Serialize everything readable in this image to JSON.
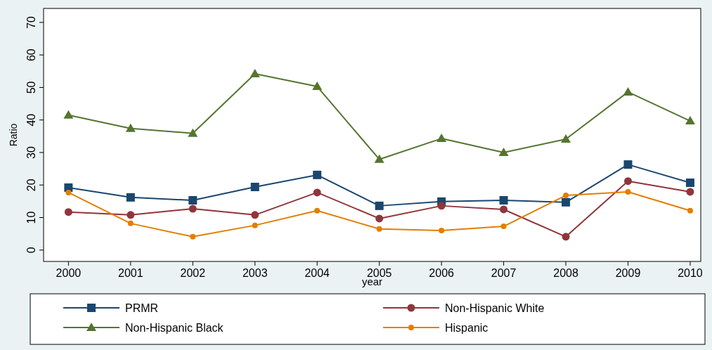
{
  "chart_data": {
    "type": "line",
    "xlabel": "year",
    "ylabel": "Ratio",
    "x": [
      2000,
      2001,
      2002,
      2003,
      2004,
      2005,
      2006,
      2007,
      2008,
      2009,
      2010
    ],
    "xlim": [
      1999.6,
      2010.17
    ],
    "xticks": [
      2000,
      2001,
      2002,
      2003,
      2004,
      2005,
      2006,
      2007,
      2008,
      2009,
      2010
    ],
    "ylim": [
      -3.5,
      74.3
    ],
    "yticks": [
      0,
      10,
      20,
      30,
      40,
      50,
      60,
      70
    ],
    "grid": false,
    "legend": "bottom",
    "series": [
      {
        "name": "PRMR",
        "color": "#1a476f",
        "marker": "square",
        "values": [
          19.2,
          16.2,
          15.3,
          19.4,
          23.1,
          13.6,
          14.9,
          15.3,
          14.7,
          26.3,
          20.7
        ]
      },
      {
        "name": "Non-Hispanic White",
        "color": "#90353b",
        "marker": "circle",
        "values": [
          11.7,
          10.8,
          12.7,
          10.8,
          17.7,
          9.7,
          13.6,
          12.5,
          4.1,
          21.2,
          17.9
        ]
      },
      {
        "name": "Non-Hispanic Black",
        "color": "#55752f",
        "marker": "triangle",
        "values": [
          41.5,
          37.4,
          35.9,
          54.2,
          50.3,
          27.9,
          34.3,
          30.0,
          34.1,
          48.6,
          39.7
        ]
      },
      {
        "name": "Hispanic",
        "color": "#e37e00",
        "marker": "circle",
        "values": [
          17.7,
          8.2,
          4.1,
          7.6,
          12.1,
          6.5,
          6.0,
          7.3,
          16.8,
          17.9,
          12.1
        ]
      }
    ]
  }
}
